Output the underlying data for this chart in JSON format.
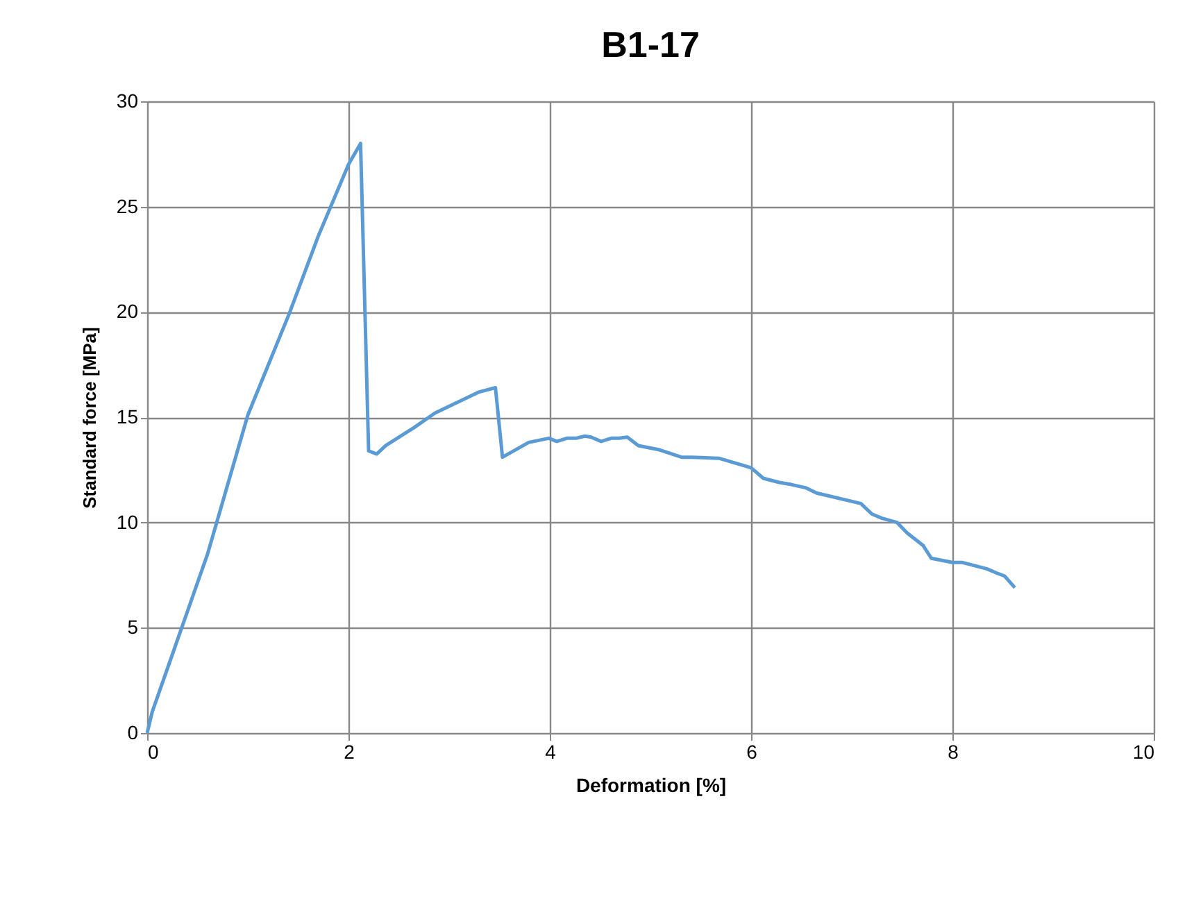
{
  "chart_data": {
    "type": "line",
    "title": "B1-17",
    "xlabel": "Deformation [%]",
    "ylabel": "Standard force [MPa]",
    "x": [
      0,
      0.05,
      0.6,
      1.0,
      1.41,
      1.7,
      2.0,
      2.12,
      2.2,
      2.28,
      2.37,
      2.65,
      2.86,
      3.3,
      3.46,
      3.53,
      3.79,
      3.99,
      4.07,
      4.17,
      4.26,
      4.35,
      4.41,
      4.51,
      4.61,
      4.69,
      4.77,
      4.88,
      5.09,
      5.31,
      5.41,
      5.68,
      6.0,
      6.12,
      6.28,
      6.4,
      6.54,
      6.65,
      7.09,
      7.2,
      7.3,
      7.45,
      7.55,
      7.71,
      7.79,
      8.0,
      8.1,
      8.34,
      8.44,
      8.52,
      8.62
    ],
    "series": [
      {
        "color": "#5b9bd5",
        "values": [
          0,
          1.0,
          8.5,
          15.1,
          19.9,
          23.6,
          27.0,
          28.0,
          13.4,
          13.25,
          13.65,
          14.5,
          15.2,
          16.2,
          16.4,
          13.1,
          13.8,
          14.0,
          13.85,
          14.0,
          14.0,
          14.1,
          14.05,
          13.85,
          14.0,
          14.0,
          14.05,
          13.65,
          13.45,
          13.1,
          13.1,
          13.05,
          12.6,
          12.1,
          11.9,
          11.8,
          11.65,
          11.4,
          10.9,
          10.4,
          10.2,
          10.0,
          9.5,
          8.9,
          8.3,
          8.1,
          8.1,
          7.8,
          7.6,
          7.45,
          6.9
        ]
      }
    ],
    "xlim": [
      0,
      10
    ],
    "xticks": [
      0,
      2,
      4,
      6,
      8,
      10
    ],
    "ylim": [
      0,
      30
    ],
    "yticks": [
      0,
      5,
      10,
      15,
      20,
      25,
      30
    ],
    "grid": true,
    "marker": "none",
    "line_style": "solid"
  }
}
